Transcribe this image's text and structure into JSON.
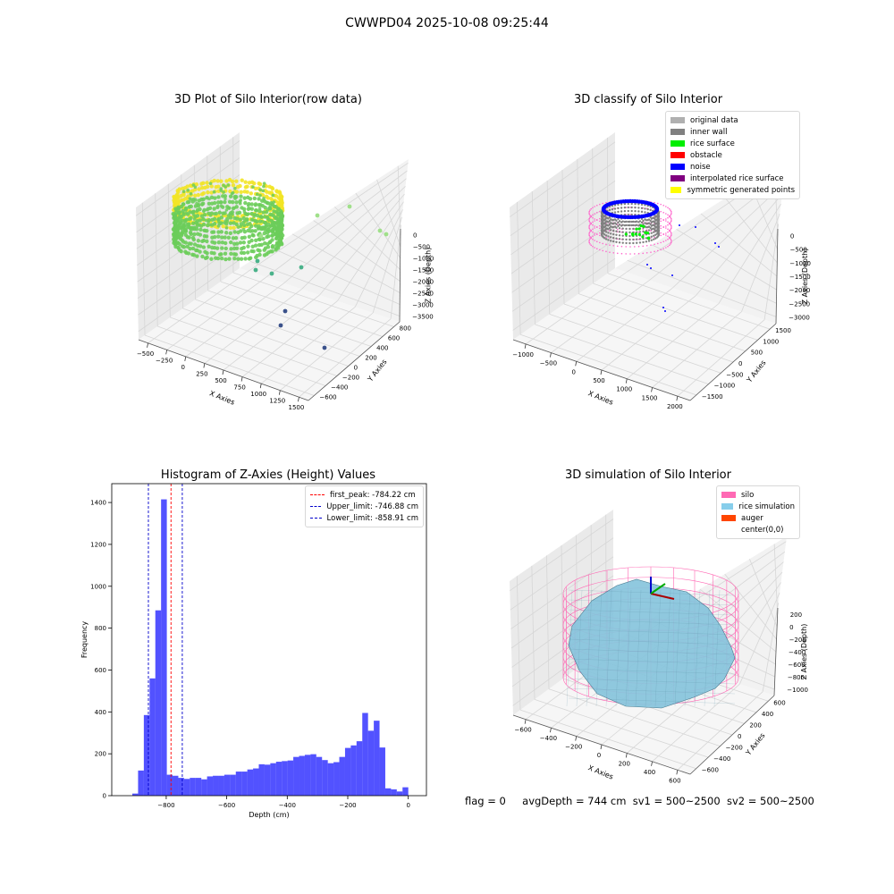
{
  "figure": {
    "suptitle": "CWWPD04 2025-10-08 09:25:44",
    "footer": {
      "flag": "flag = 0",
      "avg": "avgDepth = 744 cm",
      "sv1": "sv1 = 500~2500",
      "sv2": "sv2 = 500~2500"
    }
  },
  "chart_data": [
    {
      "type": "scatter",
      "title": "3D Plot of Silo Interior(row data)",
      "xlabel": "X Axies",
      "ylabel": "Y Axies",
      "zlabel": "Z Axies (Depth)",
      "x_ticks": [
        "−500",
        "−250",
        "0",
        "250",
        "500",
        "750",
        "1000",
        "1250",
        "1500"
      ],
      "y_ticks": [
        "−600",
        "−400",
        "−200",
        "0",
        "200",
        "400",
        "600",
        "800"
      ],
      "z_ticks": [
        "0",
        "−500",
        "−1000",
        "−1500",
        "−2000",
        "−2500",
        "−3000",
        "−3500"
      ],
      "colors": {
        "high": "#f2e426",
        "mid": "#6ccd5a",
        "low": "#3b528b"
      }
    },
    {
      "type": "scatter",
      "title": "3D classify of Silo Interior",
      "xlabel": "X Axies",
      "ylabel": "Y Axies",
      "zlabel": "Z Axies (Depth)",
      "x_ticks": [
        "−1000",
        "−500",
        "0",
        "500",
        "1000",
        "1500",
        "2000"
      ],
      "y_ticks": [
        "−1500",
        "−1000",
        "−500",
        "0",
        "500",
        "1000",
        "1500"
      ],
      "z_ticks": [
        "0",
        "−500",
        "−1000",
        "−1500",
        "−2000",
        "−2500",
        "−3000"
      ],
      "legend": [
        {
          "label": "original data",
          "color": "#b0b0b0"
        },
        {
          "label": "inner wall",
          "color": "#808080"
        },
        {
          "label": "rice surface",
          "color": "#00ee00"
        },
        {
          "label": "obstacle",
          "color": "#ff0000"
        },
        {
          "label": "noise",
          "color": "#0000ff"
        },
        {
          "label": "interpolated rice surface",
          "color": "#800080"
        },
        {
          "label": "symmetric generated points",
          "color": "#ffff00"
        }
      ]
    },
    {
      "type": "bar",
      "title": "Histogram of Z-Axies (Height) Values",
      "xlabel": "Depth (cm)",
      "ylabel": "Frequency",
      "xlim": [
        -980,
        60
      ],
      "ylim": [
        0,
        1490
      ],
      "x_ticks": [
        -800,
        -600,
        -400,
        -200,
        0
      ],
      "y_ticks": [
        0,
        200,
        400,
        600,
        800,
        1000,
        1200,
        1400
      ],
      "bar_color": "#0000ff",
      "bin_width": 19,
      "bins_left": [
        -912,
        -893,
        -874,
        -855,
        -836,
        -817,
        -798,
        -779,
        -760,
        -741,
        -722,
        -703,
        -684,
        -665,
        -646,
        -627,
        -608,
        -589,
        -570,
        -551,
        -532,
        -513,
        -494,
        -475,
        -456,
        -437,
        -418,
        -399,
        -380,
        -361,
        -342,
        -323,
        -304,
        -285,
        -266,
        -247,
        -228,
        -209,
        -190,
        -171,
        -152,
        -133,
        -114,
        -95,
        -76,
        -57,
        -38,
        -19
      ],
      "values": [
        10,
        120,
        385,
        560,
        885,
        1415,
        100,
        95,
        85,
        80,
        85,
        85,
        78,
        92,
        95,
        95,
        100,
        100,
        115,
        115,
        125,
        130,
        150,
        148,
        155,
        162,
        165,
        168,
        185,
        190,
        195,
        198,
        185,
        170,
        155,
        160,
        185,
        228,
        240,
        260,
        395,
        310,
        358,
        230,
        35,
        30,
        20,
        40
      ],
      "vlines": [
        {
          "label": "first_peak: -784.22 cm",
          "x": -784.22,
          "color": "#ff0000"
        },
        {
          "label": "Upper_limit: -746.88 cm",
          "x": -746.88,
          "color": "#0000cc"
        },
        {
          "label": "Lower_limit: -858.91 cm",
          "x": -858.91,
          "color": "#0000cc"
        }
      ]
    },
    {
      "type": "area",
      "title": "3D simulation of Silo Interior",
      "xlabel": "X Axies",
      "ylabel": "Y Axies",
      "zlabel": "Z Axies (Depth)",
      "x_ticks": [
        "−600",
        "−400",
        "−200",
        "0",
        "200",
        "400",
        "600"
      ],
      "y_ticks": [
        "−600",
        "−400",
        "−200",
        "0",
        "200",
        "400",
        "600"
      ],
      "z_ticks": [
        "200",
        "0",
        "−200",
        "−400",
        "−600",
        "−800",
        "−1000"
      ],
      "legend": [
        {
          "label": "silo",
          "color": "#ff69b4"
        },
        {
          "label": "rice simulation",
          "color": "#87ceeb"
        },
        {
          "label": "auger",
          "color": "#ff4500"
        },
        {
          "label": "center(0,0)",
          "color": "transparent"
        }
      ]
    }
  ]
}
